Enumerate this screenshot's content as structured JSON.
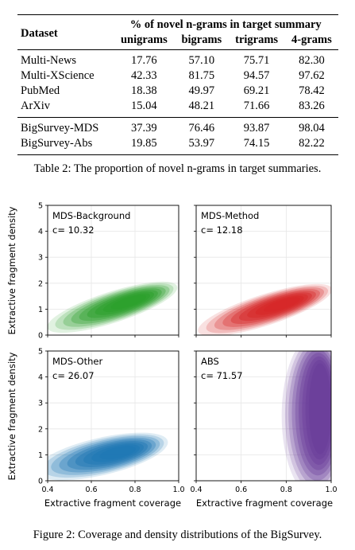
{
  "table": {
    "header_group": "% of novel n-grams in target summary",
    "dataset_header": "Dataset",
    "columns": [
      "unigrams",
      "bigrams",
      "trigrams",
      "4-grams"
    ],
    "group1": [
      {
        "name": "Multi-News",
        "values": [
          "17.76",
          "57.10",
          "75.71",
          "82.30"
        ]
      },
      {
        "name": "Multi-XScience",
        "values": [
          "42.33",
          "81.75",
          "94.57",
          "97.62"
        ]
      },
      {
        "name": "PubMed",
        "values": [
          "18.38",
          "49.97",
          "69.21",
          "78.42"
        ]
      },
      {
        "name": "ArXiv",
        "values": [
          "15.04",
          "48.21",
          "71.66",
          "83.26"
        ]
      }
    ],
    "group2": [
      {
        "name": "BigSurvey-MDS",
        "values": [
          "37.39",
          "76.46",
          "93.87",
          "98.04"
        ]
      },
      {
        "name": "BigSurvey-Abs",
        "values": [
          "19.85",
          "53.97",
          "74.15",
          "82.22"
        ]
      }
    ],
    "caption": "Table 2: The proportion of novel n-grams in target summaries."
  },
  "figure": {
    "caption": "Figure 2: Coverage and density distributions of the BigSurvey.",
    "xlabel": "Extractive fragment coverage",
    "ylabel": "Extractive fragment density",
    "colors": {
      "green": "#2ca02c",
      "red": "#d62728",
      "blue": "#1f77b4",
      "purple": "#6a3d9a",
      "grid": "#cccccc"
    }
  },
  "chart_data": [
    {
      "type": "heatmap",
      "subtype": "kde-density",
      "label": "MDS-Background",
      "stat": "c= 10.32",
      "color": "green",
      "xlim": [
        0.4,
        1.0
      ],
      "ylim": [
        0,
        5
      ],
      "xticks": [
        "0.4",
        "0.6",
        "0.8",
        "1.0"
      ],
      "yticks": [
        "0",
        "1",
        "2",
        "3",
        "4",
        "5"
      ],
      "peak": {
        "x": 0.78,
        "y": 1.3
      }
    },
    {
      "type": "heatmap",
      "subtype": "kde-density",
      "label": "MDS-Method",
      "stat": "c= 12.18",
      "color": "red",
      "xlim": [
        0.4,
        1.0
      ],
      "ylim": [
        0,
        5
      ],
      "xticks": [
        "0.4",
        "0.6",
        "0.8",
        "1.0"
      ],
      "yticks": [
        "0",
        "1",
        "2",
        "3",
        "4",
        "5"
      ],
      "peak": {
        "x": 0.79,
        "y": 1.2
      }
    },
    {
      "type": "heatmap",
      "subtype": "kde-density",
      "label": "MDS-Other",
      "stat": "c= 26.07",
      "color": "blue",
      "xlim": [
        0.4,
        1.0
      ],
      "ylim": [
        0,
        5
      ],
      "xticks": [
        "0.4",
        "0.6",
        "0.8",
        "1.0"
      ],
      "yticks": [
        "0",
        "1",
        "2",
        "3",
        "4",
        "5"
      ],
      "peak": {
        "x": 0.73,
        "y": 1.1
      }
    },
    {
      "type": "heatmap",
      "subtype": "kde-density",
      "label": "ABS",
      "stat": "c= 71.57",
      "color": "purple",
      "xlim": [
        0.4,
        1.0
      ],
      "ylim": [
        0,
        5
      ],
      "xticks": [
        "0.4",
        "0.6",
        "0.8",
        "1.0"
      ],
      "yticks": [
        "0",
        "1",
        "2",
        "3",
        "4",
        "5"
      ],
      "peak": {
        "x": 0.93,
        "y": 3.0
      }
    }
  ]
}
